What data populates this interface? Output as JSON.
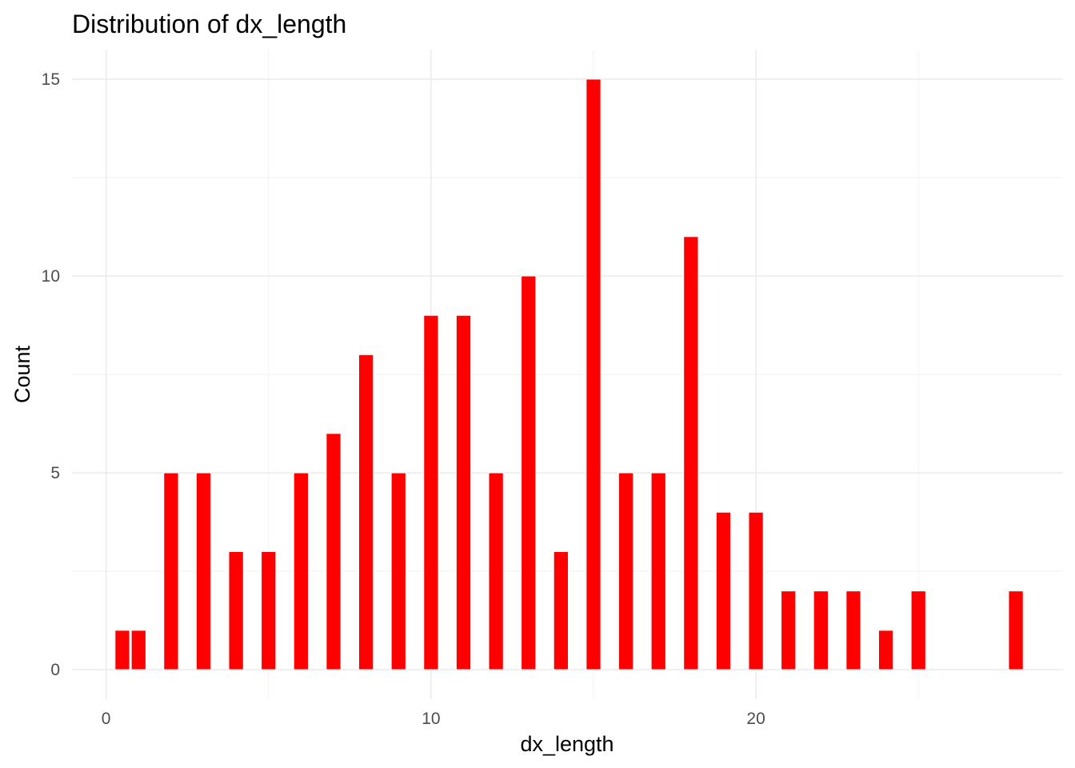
{
  "chart_data": {
    "type": "bar",
    "title": "Distribution of dx_length",
    "xlabel": "dx_length",
    "ylabel": "Count",
    "bar_color": "#ff0000",
    "background": "#ffffff",
    "grid": true,
    "xlim": [
      -1.05,
      29.45
    ],
    "ylim": [
      -0.75,
      15.75
    ],
    "x_ticks": [
      0,
      10,
      20
    ],
    "y_ticks": [
      0,
      5,
      10,
      15
    ],
    "x_tick_labels": [
      "0",
      "10",
      "20"
    ],
    "y_tick_labels": [
      "0",
      "5",
      "10",
      "15"
    ],
    "bar_width": 0.45,
    "x": [
      0.5,
      1,
      2,
      3,
      4,
      5,
      6,
      7,
      8,
      9,
      10,
      11,
      12,
      13,
      14,
      15,
      16,
      17,
      18,
      19,
      20,
      21,
      22,
      23,
      24,
      25,
      28
    ],
    "values": [
      1,
      1,
      5,
      5,
      3,
      3,
      5,
      6,
      8,
      5,
      9,
      9,
      5,
      10,
      3,
      15,
      5,
      5,
      11,
      4,
      4,
      2,
      2,
      2,
      1,
      2,
      2
    ]
  }
}
